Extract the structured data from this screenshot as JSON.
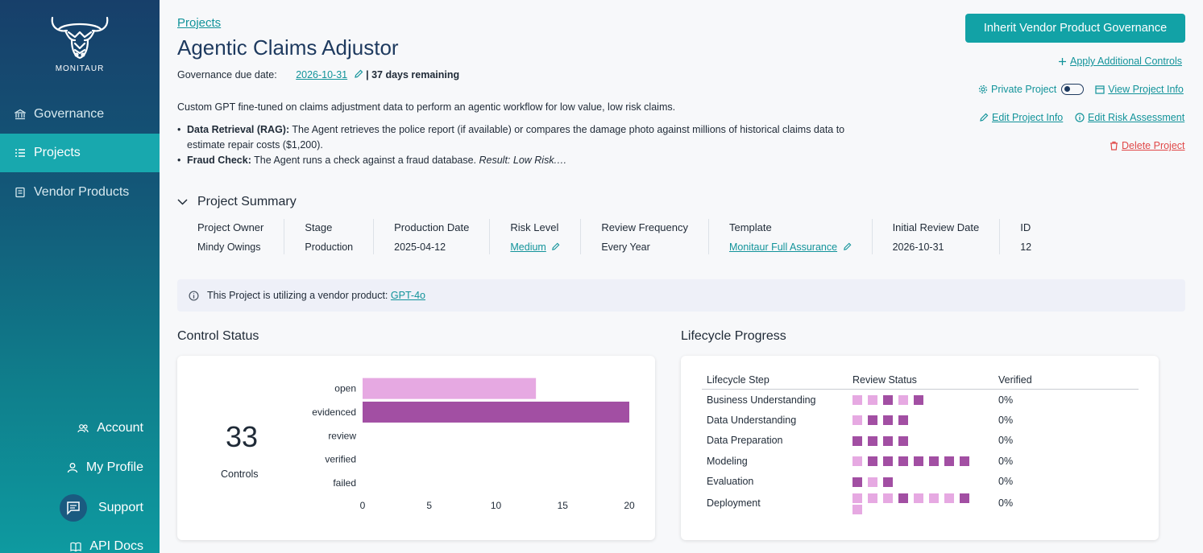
{
  "brand": {
    "name": "MONITAUR",
    "logo_icon": "bull-head-logo"
  },
  "sidebar": {
    "items": [
      {
        "label": "Governance",
        "icon": "bank-icon",
        "active": false
      },
      {
        "label": "Projects",
        "icon": "list-icon",
        "active": true
      },
      {
        "label": "Vendor Products",
        "icon": "book-icon",
        "active": false
      }
    ],
    "bottom": [
      {
        "label": "Account",
        "icon": "users-icon"
      },
      {
        "label": "My Profile",
        "icon": "user-icon"
      },
      {
        "label": "Support",
        "icon": "chat-icon"
      },
      {
        "label": "API Docs",
        "icon": "open-book-icon"
      }
    ]
  },
  "header": {
    "breadcrumb": "Projects",
    "title": "Agentic Claims Adjustor",
    "due_label": "Governance due date:",
    "due_date": "2026-10-31",
    "remaining": "| 37 days remaining"
  },
  "description": "Custom GPT fine-tuned on claims adjustment data to perform an agentic workflow for low value, low risk claims.",
  "bullets": [
    {
      "bold": "Data Retrieval (RAG):",
      "text": " The Agent retrieves the police report (if available) or compares the damage photo against millions of historical claims data to estimate repair costs ($1,200)."
    },
    {
      "bold": "Fraud Check:",
      "text": " The Agent runs a check against a fraud database. ",
      "italic": "Result: Low Risk.…"
    }
  ],
  "actions": {
    "primary": "Inherit Vendor Product Governance",
    "apply_controls": "Apply Additional Controls",
    "private_project": "Private Project",
    "view_info": "View Project Info",
    "edit_info": "Edit Project Info",
    "edit_risk": "Edit Risk Assessment",
    "delete": "Delete Project"
  },
  "summary": {
    "title": "Project Summary",
    "columns": [
      {
        "label": "Project Owner",
        "value": "Mindy Owings",
        "link": false
      },
      {
        "label": "Stage",
        "value": "Production",
        "link": false
      },
      {
        "label": "Production Date",
        "value": "2025-04-12",
        "link": false
      },
      {
        "label": "Risk Level",
        "value": "Medium",
        "link": true
      },
      {
        "label": "Review Frequency",
        "value": "Every Year",
        "link": false
      },
      {
        "label": "Template",
        "value": "Monitaur Full Assurance",
        "link": true
      },
      {
        "label": "Initial Review Date",
        "value": "2026-10-31",
        "link": false
      },
      {
        "label": "ID",
        "value": "12",
        "link": false
      }
    ]
  },
  "vendor_banner": {
    "text": "This Project is utilizing a vendor product: ",
    "link": "GPT-4o"
  },
  "control_status": {
    "title": "Control Status",
    "total": "33",
    "total_label": "Controls"
  },
  "chart_data": {
    "type": "bar",
    "orientation": "horizontal",
    "categories": [
      "open",
      "evidenced",
      "review",
      "verified",
      "failed"
    ],
    "values": [
      13,
      20,
      0,
      0,
      0
    ],
    "colors": [
      "#e6a9e2",
      "#a24fa3",
      "#a24fa3",
      "#a24fa3",
      "#a24fa3"
    ],
    "xticks": [
      0,
      5,
      10,
      15,
      20
    ],
    "xlim": [
      0,
      20
    ]
  },
  "lifecycle": {
    "title": "Lifecycle Progress",
    "headers": [
      "Lifecycle Step",
      "Review Status",
      "Verified"
    ],
    "light_color": "#e6a9e2",
    "dark_color": "#a24fa3",
    "rows": [
      {
        "step": "Business Understanding",
        "status": [
          0,
          0,
          1,
          0,
          1
        ],
        "verified": "0%"
      },
      {
        "step": "Data Understanding",
        "status": [
          0,
          1,
          1,
          1
        ],
        "verified": "0%"
      },
      {
        "step": "Data Preparation",
        "status": [
          1,
          1,
          1,
          1
        ],
        "verified": "0%"
      },
      {
        "step": "Modeling",
        "status": [
          0,
          1,
          1,
          1,
          1,
          1,
          1,
          1
        ],
        "verified": "0%"
      },
      {
        "step": "Evaluation",
        "status": [
          1,
          0,
          1
        ],
        "verified": "0%"
      },
      {
        "step": "Deployment",
        "status": [
          0,
          0,
          0,
          1,
          0,
          0,
          0,
          1,
          0
        ],
        "verified": "0%"
      }
    ]
  }
}
